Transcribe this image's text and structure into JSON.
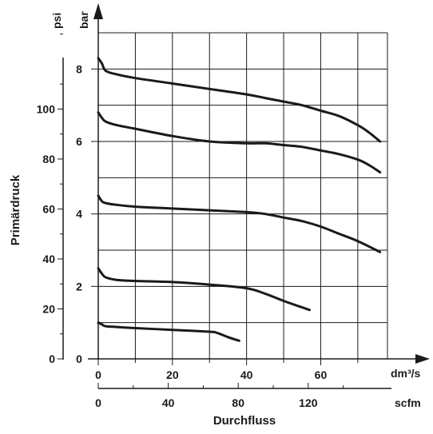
{
  "chart_data": {
    "type": "line",
    "ylabel": "Primärdruck",
    "xlabel": "Durchfluss",
    "y_units": {
      "left": "psi",
      "right": "bar"
    },
    "x_units": {
      "top": "dm³/s",
      "bottom": "scfm"
    },
    "xlim": [
      0,
      78
    ],
    "ylim": [
      0,
      9
    ],
    "x_ticks_dm3s": [
      "0",
      "20",
      "40",
      "60"
    ],
    "x_ticks_scfm": [
      "0",
      "40",
      "80",
      "120"
    ],
    "y_ticks_bar": [
      "0",
      "2",
      "4",
      "6",
      "8"
    ],
    "y_ticks_psi": [
      "0",
      "20",
      "40",
      "60",
      "80",
      "100"
    ],
    "grid": true,
    "series": [
      {
        "x": [
          0,
          1,
          2,
          5,
          10,
          20,
          30,
          32,
          35,
          38
        ],
        "y": [
          1.0,
          0.95,
          0.9,
          0.88,
          0.85,
          0.8,
          0.75,
          0.72,
          0.6,
          0.5
        ]
      },
      {
        "x": [
          0,
          1,
          2,
          5,
          10,
          20,
          30,
          40,
          45,
          50,
          57
        ],
        "y": [
          2.5,
          2.35,
          2.25,
          2.18,
          2.15,
          2.12,
          2.05,
          1.95,
          1.8,
          1.6,
          1.35
        ]
      },
      {
        "x": [
          0,
          1,
          2,
          5,
          10,
          20,
          30,
          40,
          45,
          50,
          55,
          60,
          65,
          70,
          76
        ],
        "y": [
          4.5,
          4.35,
          4.3,
          4.25,
          4.2,
          4.15,
          4.1,
          4.05,
          4.0,
          3.9,
          3.8,
          3.65,
          3.45,
          3.25,
          2.95
        ]
      },
      {
        "x": [
          0,
          1,
          2,
          5,
          10,
          20,
          30,
          40,
          45,
          50,
          55,
          60,
          65,
          70,
          73,
          76
        ],
        "y": [
          6.8,
          6.65,
          6.55,
          6.45,
          6.35,
          6.15,
          6.0,
          5.95,
          5.95,
          5.9,
          5.85,
          5.75,
          5.65,
          5.5,
          5.35,
          5.15
        ]
      },
      {
        "x": [
          0,
          1,
          2,
          5,
          10,
          20,
          30,
          40,
          45,
          50,
          55,
          60,
          65,
          70,
          73,
          76
        ],
        "y": [
          8.3,
          8.15,
          7.95,
          7.85,
          7.75,
          7.6,
          7.45,
          7.3,
          7.2,
          7.1,
          7.0,
          6.85,
          6.7,
          6.45,
          6.25,
          6.0
        ]
      }
    ]
  }
}
